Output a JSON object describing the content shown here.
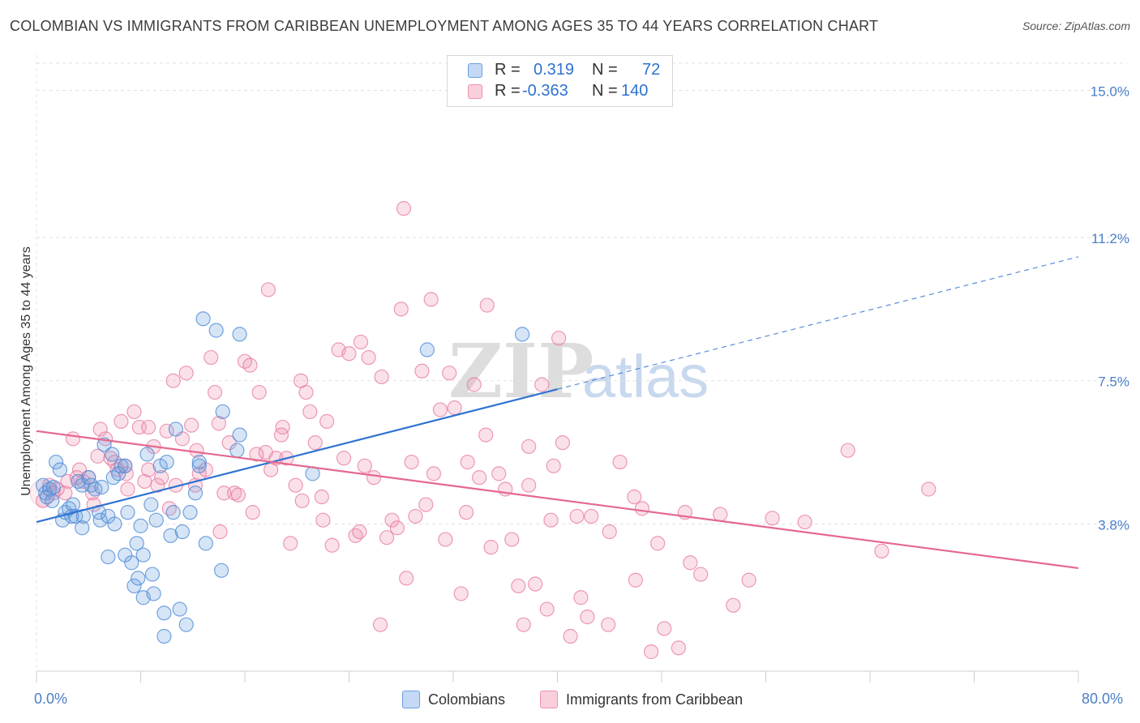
{
  "title": "COLOMBIAN VS IMMIGRANTS FROM CARIBBEAN UNEMPLOYMENT AMONG AGES 35 TO 44 YEARS CORRELATION CHART",
  "source": "Source: ZipAtlas.com",
  "watermark": {
    "zip": "ZIP",
    "atlas": "atlas"
  },
  "colors": {
    "blue": "#6aa0e0",
    "blue_line": "#2f72d0",
    "pink": "#ee92b0",
    "pink_line": "#e5688f",
    "axis_text": "#4a7ec8"
  },
  "legend": {
    "rows": [
      {
        "r_label": "R =",
        "r_value": "0.319",
        "n_label": "N =",
        "n_value": "72"
      },
      {
        "r_label": "R =",
        "r_value": "-0.363",
        "n_label": "N =",
        "n_value": "140"
      }
    ]
  },
  "bottom_legend": {
    "colombians": "Colombians",
    "caribbean": "Immigrants from Caribbean"
  },
  "chart_data": {
    "type": "scatter",
    "title": "COLOMBIAN VS IMMIGRANTS FROM CARIBBEAN UNEMPLOYMENT AMONG AGES 35 TO 44 YEARS CORRELATION CHART",
    "xlabel": "",
    "ylabel": "Unemployment Among Ages 35 to 44 years",
    "xlim": [
      0,
      80
    ],
    "ylim": [
      0,
      15.7
    ],
    "x_tick_labels": [
      "0.0%",
      "80.0%"
    ],
    "y_ticks": [
      3.8,
      7.5,
      11.2,
      15.0
    ],
    "y_tick_labels": [
      "3.8%",
      "7.5%",
      "11.2%",
      "15.0%"
    ],
    "grid": "horizontal dashed",
    "legend_position": "top-center",
    "series": [
      {
        "name": "Colombians",
        "r": 0.319,
        "n": 72,
        "trend": {
          "x": [
            0,
            40
          ],
          "y": [
            3.85,
            7.28
          ],
          "dashed_to": [
            80,
            10.7
          ]
        },
        "points": [
          [
            0.5,
            4.8
          ],
          [
            0.7,
            4.6
          ],
          [
            0.8,
            4.5
          ],
          [
            1.0,
            4.7
          ],
          [
            1.2,
            4.4
          ],
          [
            1.3,
            4.75
          ],
          [
            1.5,
            5.4
          ],
          [
            1.8,
            5.2
          ],
          [
            2.0,
            3.9
          ],
          [
            2.2,
            4.1
          ],
          [
            2.5,
            4.2
          ],
          [
            2.8,
            4.3
          ],
          [
            2.7,
            4.0
          ],
          [
            3.0,
            4.0
          ],
          [
            3.2,
            4.9
          ],
          [
            3.5,
            4.8
          ],
          [
            3.6,
            4.0
          ],
          [
            3.5,
            3.7
          ],
          [
            4.0,
            5.0
          ],
          [
            4.2,
            4.8
          ],
          [
            4.5,
            4.7
          ],
          [
            4.8,
            4.1
          ],
          [
            4.9,
            3.9
          ],
          [
            5.0,
            4.75
          ],
          [
            5.2,
            5.85
          ],
          [
            5.5,
            2.95
          ],
          [
            5.5,
            4.0
          ],
          [
            5.8,
            5.6
          ],
          [
            5.9,
            5.0
          ],
          [
            6.0,
            3.8
          ],
          [
            6.3,
            5.1
          ],
          [
            6.5,
            5.3
          ],
          [
            6.8,
            5.3
          ],
          [
            6.8,
            3.0
          ],
          [
            7.0,
            4.1
          ],
          [
            7.3,
            2.8
          ],
          [
            7.5,
            2.2
          ],
          [
            7.7,
            3.3
          ],
          [
            7.8,
            2.4
          ],
          [
            8.0,
            3.75
          ],
          [
            8.2,
            3.0
          ],
          [
            8.2,
            1.9
          ],
          [
            8.5,
            5.6
          ],
          [
            8.8,
            4.3
          ],
          [
            9.0,
            2.0
          ],
          [
            9.2,
            3.9
          ],
          [
            9.5,
            5.3
          ],
          [
            9.8,
            1.5
          ],
          [
            9.8,
            0.9
          ],
          [
            10.0,
            5.4
          ],
          [
            10.3,
            3.5
          ],
          [
            10.5,
            4.1
          ],
          [
            10.7,
            6.25
          ],
          [
            11.0,
            1.6
          ],
          [
            11.2,
            3.6
          ],
          [
            11.5,
            1.2
          ],
          [
            11.8,
            4.1
          ],
          [
            12.2,
            4.6
          ],
          [
            12.5,
            5.3
          ],
          [
            12.5,
            5.4
          ],
          [
            12.8,
            9.1
          ],
          [
            13.0,
            3.3
          ],
          [
            13.8,
            8.8
          ],
          [
            14.2,
            2.6
          ],
          [
            14.3,
            6.7
          ],
          [
            15.4,
            5.7
          ],
          [
            15.6,
            6.1
          ],
          [
            15.6,
            8.7
          ],
          [
            21.2,
            5.1
          ],
          [
            30.0,
            8.3
          ],
          [
            37.3,
            8.7
          ],
          [
            8.9,
            2.5
          ]
        ]
      },
      {
        "name": "Immigrants from Caribbean",
        "r": -0.363,
        "n": 140,
        "trend": {
          "x": [
            0,
            80
          ],
          "y": [
            6.2,
            2.66
          ]
        },
        "points": [
          [
            0.5,
            4.4
          ],
          [
            1.0,
            4.8
          ],
          [
            1.3,
            4.6
          ],
          [
            1.6,
            4.7
          ],
          [
            2.2,
            4.6
          ],
          [
            2.4,
            4.9
          ],
          [
            2.8,
            6.0
          ],
          [
            3.3,
            5.2
          ],
          [
            3.6,
            4.9
          ],
          [
            4.0,
            5.0
          ],
          [
            4.3,
            4.6
          ],
          [
            4.7,
            5.55
          ],
          [
            4.9,
            6.25
          ],
          [
            5.3,
            6.0
          ],
          [
            5.7,
            5.5
          ],
          [
            6.0,
            5.4
          ],
          [
            6.2,
            5.2
          ],
          [
            6.5,
            6.45
          ],
          [
            6.8,
            5.3
          ],
          [
            7.0,
            4.7
          ],
          [
            7.5,
            6.7
          ],
          [
            7.9,
            6.3
          ],
          [
            8.3,
            4.9
          ],
          [
            8.6,
            5.2
          ],
          [
            9.0,
            5.8
          ],
          [
            9.3,
            4.8
          ],
          [
            9.6,
            5.0
          ],
          [
            10.0,
            6.2
          ],
          [
            10.5,
            7.5
          ],
          [
            10.7,
            4.8
          ],
          [
            11.2,
            6.0
          ],
          [
            11.5,
            7.7
          ],
          [
            11.9,
            6.35
          ],
          [
            12.2,
            4.8
          ],
          [
            12.5,
            5.1
          ],
          [
            13.0,
            5.2
          ],
          [
            13.4,
            8.1
          ],
          [
            13.7,
            7.2
          ],
          [
            14.0,
            6.4
          ],
          [
            14.4,
            4.6
          ],
          [
            14.8,
            5.9
          ],
          [
            15.2,
            4.6
          ],
          [
            15.5,
            4.55
          ],
          [
            16.0,
            8.0
          ],
          [
            16.4,
            7.9
          ],
          [
            16.9,
            5.6
          ],
          [
            17.1,
            7.2
          ],
          [
            17.6,
            5.65
          ],
          [
            18.0,
            5.2
          ],
          [
            18.4,
            5.5
          ],
          [
            18.9,
            6.3
          ],
          [
            19.2,
            5.5
          ],
          [
            19.5,
            3.3
          ],
          [
            19.9,
            4.8
          ],
          [
            20.3,
            7.5
          ],
          [
            20.7,
            7.2
          ],
          [
            21.0,
            6.7
          ],
          [
            21.4,
            5.9
          ],
          [
            21.9,
            4.5
          ],
          [
            22.3,
            6.45
          ],
          [
            22.7,
            3.25
          ],
          [
            23.2,
            8.3
          ],
          [
            23.6,
            5.5
          ],
          [
            24.0,
            8.2
          ],
          [
            24.5,
            3.5
          ],
          [
            24.9,
            8.5
          ],
          [
            25.2,
            5.3
          ],
          [
            25.5,
            8.1
          ],
          [
            25.9,
            5.0
          ],
          [
            26.4,
            1.2
          ],
          [
            26.9,
            3.45
          ],
          [
            27.3,
            3.9
          ],
          [
            27.7,
            3.7
          ],
          [
            28.0,
            9.35
          ],
          [
            28.4,
            2.4
          ],
          [
            28.8,
            5.4
          ],
          [
            29.1,
            4.0
          ],
          [
            29.6,
            7.75
          ],
          [
            30.3,
            9.6
          ],
          [
            31.0,
            6.75
          ],
          [
            31.4,
            3.4
          ],
          [
            31.7,
            7.7
          ],
          [
            32.1,
            6.8
          ],
          [
            32.6,
            2.0
          ],
          [
            33.1,
            5.4
          ],
          [
            33.6,
            7.4
          ],
          [
            34.0,
            5.0
          ],
          [
            34.5,
            6.1
          ],
          [
            34.9,
            3.2
          ],
          [
            35.5,
            5.1
          ],
          [
            36.0,
            4.7
          ],
          [
            36.5,
            3.4
          ],
          [
            37.0,
            2.2
          ],
          [
            37.4,
            1.2
          ],
          [
            37.8,
            5.8
          ],
          [
            38.3,
            2.25
          ],
          [
            38.8,
            7.4
          ],
          [
            39.2,
            1.6
          ],
          [
            39.7,
            5.3
          ],
          [
            40.1,
            8.6
          ],
          [
            40.4,
            5.9
          ],
          [
            41.0,
            0.9
          ],
          [
            41.5,
            4.0
          ],
          [
            41.8,
            1.9
          ],
          [
            42.6,
            4.0
          ],
          [
            43.9,
            1.2
          ],
          [
            44.8,
            5.4
          ],
          [
            46.0,
            2.35
          ],
          [
            46.5,
            4.2
          ],
          [
            47.2,
            0.5
          ],
          [
            47.7,
            3.3
          ],
          [
            48.2,
            1.1
          ],
          [
            49.3,
            0.6
          ],
          [
            49.8,
            4.1
          ],
          [
            51.0,
            2.5
          ],
          [
            52.5,
            4.05
          ],
          [
            53.5,
            1.7
          ],
          [
            54.7,
            2.35
          ],
          [
            56.5,
            3.95
          ],
          [
            59.0,
            3.85
          ],
          [
            62.3,
            5.7
          ],
          [
            64.9,
            3.1
          ],
          [
            68.5,
            4.7
          ],
          [
            42.3,
            1.4
          ],
          [
            34.6,
            9.45
          ],
          [
            28.2,
            11.95
          ],
          [
            17.8,
            9.85
          ],
          [
            26.5,
            7.6
          ],
          [
            33.0,
            4.1
          ],
          [
            37.8,
            4.8
          ],
          [
            45.9,
            4.5
          ],
          [
            22.0,
            3.9
          ],
          [
            16.6,
            4.1
          ],
          [
            12.3,
            5.7
          ],
          [
            10.2,
            4.2
          ],
          [
            6.9,
            5.1
          ],
          [
            4.4,
            4.3
          ],
          [
            3.1,
            5.0
          ],
          [
            8.6,
            6.3
          ],
          [
            14.1,
            3.6
          ],
          [
            20.4,
            4.4
          ],
          [
            24.8,
            3.6
          ],
          [
            29.9,
            4.3
          ],
          [
            39.5,
            3.9
          ],
          [
            44.0,
            3.6
          ],
          [
            50.2,
            2.8
          ],
          [
            30.5,
            5.1
          ],
          [
            18.8,
            6.1
          ]
        ]
      }
    ]
  }
}
